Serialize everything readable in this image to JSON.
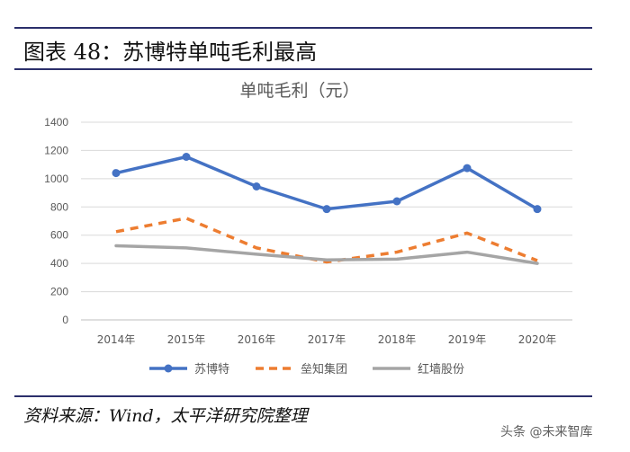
{
  "figure": {
    "title": "图表 48：苏博特单吨毛利最高",
    "source": "资料来源：Wind，太平洋研究院整理"
  },
  "watermark": "头条 @未来智库",
  "chart_data": {
    "type": "line",
    "title": "单吨毛利（元）",
    "xlabel": "",
    "ylabel": "",
    "categories": [
      "2014年",
      "2015年",
      "2016年",
      "2017年",
      "2018年",
      "2019年",
      "2020年"
    ],
    "ylim": [
      0,
      1400
    ],
    "yticks": [
      0,
      200,
      400,
      600,
      800,
      1000,
      1200,
      1400
    ],
    "grid": true,
    "legend_position": "bottom",
    "series": [
      {
        "name": "苏博特",
        "values": [
          1040,
          1155,
          945,
          785,
          840,
          1075,
          785
        ],
        "color": "#4472c4",
        "style": "solid-marker"
      },
      {
        "name": "垒知集团",
        "values": [
          625,
          720,
          510,
          410,
          480,
          615,
          420
        ],
        "color": "#ed7d31",
        "style": "dashed"
      },
      {
        "name": "红墙股份",
        "values": [
          525,
          510,
          465,
          425,
          430,
          480,
          400
        ],
        "color": "#a5a5a5",
        "style": "solid"
      }
    ]
  }
}
